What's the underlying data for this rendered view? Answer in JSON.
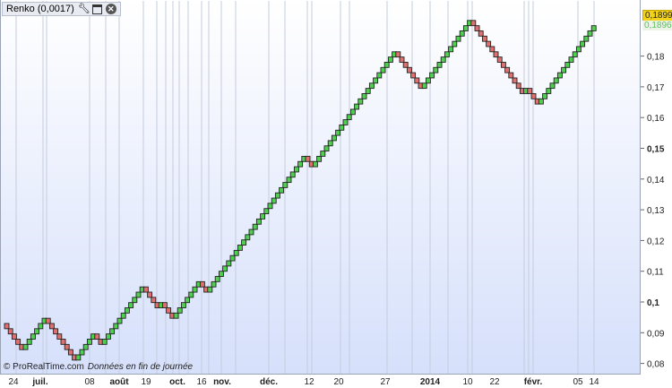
{
  "legend": {
    "label": "Renko (0,0017)",
    "icons": [
      "wrench-icon",
      "window-icon",
      "close-icon"
    ]
  },
  "credit": {
    "source": "© ProRealTime.com",
    "note": "Données en fin de journée"
  },
  "price_tags": {
    "last": "0,1899",
    "previous": "0,1896",
    "last_color": "#f2d21a",
    "previous_color": "#5cc05c"
  },
  "chart_data": {
    "type": "renko",
    "brick_size": 0.0017,
    "start_price": 0.093,
    "legs_in_bricks": [
      -5,
      6,
      -8,
      5,
      -2,
      11,
      -4,
      1,
      -3,
      7,
      -2,
      26,
      -2,
      22,
      -7,
      13,
      -14,
      1,
      -3,
      15
    ],
    "colors": {
      "up": "#4fcf4f",
      "down": "#e07070"
    },
    "ylim": [
      0.078,
      0.19
    ],
    "y_ticks": [
      {
        "value": 0.08,
        "label": "0,08",
        "bold": false
      },
      {
        "value": 0.09,
        "label": "0,09",
        "bold": false
      },
      {
        "value": 0.1,
        "label": "0,1",
        "bold": true
      },
      {
        "value": 0.11,
        "label": "0,11",
        "bold": false
      },
      {
        "value": 0.12,
        "label": "0,12",
        "bold": false
      },
      {
        "value": 0.13,
        "label": "0,13",
        "bold": false
      },
      {
        "value": 0.14,
        "label": "0,14",
        "bold": false
      },
      {
        "value": 0.15,
        "label": "0,15",
        "bold": true
      },
      {
        "value": 0.16,
        "label": "0,16",
        "bold": false
      },
      {
        "value": 0.17,
        "label": "0,17",
        "bold": false
      },
      {
        "value": 0.18,
        "label": "0,18",
        "bold": false
      }
    ],
    "x_ticks": [
      {
        "label": "24",
        "bold": false
      },
      {
        "label": "juil.",
        "bold": true
      },
      {
        "label": "08",
        "bold": false
      },
      {
        "label": "août",
        "bold": true
      },
      {
        "label": "19",
        "bold": false
      },
      {
        "label": "oct.",
        "bold": true
      },
      {
        "label": "16",
        "bold": false
      },
      {
        "label": "nov.",
        "bold": true
      },
      {
        "label": "déc.",
        "bold": true
      },
      {
        "label": "12",
        "bold": false
      },
      {
        "label": "20",
        "bold": false
      },
      {
        "label": "27",
        "bold": false
      },
      {
        "label": "2014",
        "bold": true
      },
      {
        "label": "10",
        "bold": false
      },
      {
        "label": "22",
        "bold": false
      },
      {
        "label": "févr.",
        "bold": true
      },
      {
        "label": "05",
        "bold": false
      },
      {
        "label": "14",
        "bold": false
      }
    ],
    "grid": {
      "vertical": true,
      "horizontal": false
    }
  }
}
